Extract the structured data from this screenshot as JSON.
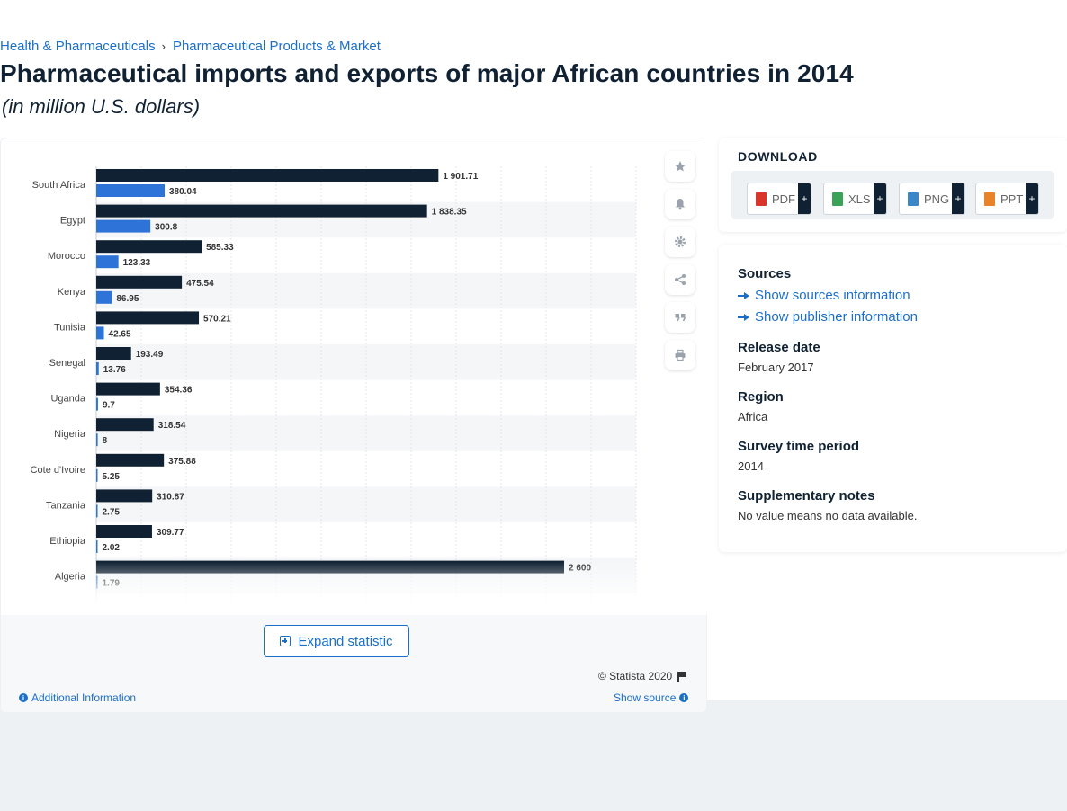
{
  "breadcrumb": {
    "items": [
      "Health & Pharmaceuticals",
      "Pharmaceutical Products & Market"
    ],
    "separator": "›"
  },
  "page": {
    "title": "Pharmaceutical imports and exports of major African countries in 2014",
    "subtitle": "(in million U.S. dollars)"
  },
  "chart_data": {
    "type": "bar",
    "orientation": "horizontal",
    "categories": [
      "South Africa",
      "Egypt",
      "Morocco",
      "Kenya",
      "Tunisia",
      "Senegal",
      "Uganda",
      "Nigeria",
      "Cote d'Ivoire",
      "Tanzania",
      "Ethiopia",
      "Algeria"
    ],
    "series": [
      {
        "color": "#0f2132",
        "values": [
          1901.71,
          1838.35,
          585.33,
          475.54,
          570.21,
          193.49,
          354.36,
          318.54,
          375.88,
          310.87,
          309.77,
          2600
        ],
        "labels": [
          "1 901.71",
          "1 838.35",
          "585.33",
          "475.54",
          "570.21",
          "193.49",
          "354.36",
          "318.54",
          "375.88",
          "310.87",
          "309.77",
          "2 600"
        ]
      },
      {
        "color": "#2e74d8",
        "values": [
          380.04,
          300.8,
          123.33,
          86.95,
          42.65,
          13.76,
          9.7,
          8,
          5.25,
          2.75,
          2.02,
          1.79
        ],
        "labels": [
          "380.04",
          "300.8",
          "123.33",
          "86.95",
          "42.65",
          "13.76",
          "9.7",
          "8",
          "5.25",
          "2.75",
          "2.02",
          "1.79"
        ]
      }
    ],
    "xlim": [
      0,
      3000
    ],
    "grid": true,
    "legend": "none"
  },
  "chart_tools": {
    "icons": [
      "star-icon",
      "bell-icon",
      "gear-icon",
      "share-icon",
      "quote-icon",
      "print-icon"
    ]
  },
  "chart_footer": {
    "expand_label": "Expand statistic",
    "copyright": "© Statista 2020",
    "additional_info": "Additional Information",
    "show_source": "Show source"
  },
  "download": {
    "title": "DOWNLOAD",
    "buttons": [
      {
        "label": "PDF",
        "plus": "+",
        "color": "#d9362b"
      },
      {
        "label": "XLS",
        "plus": "+",
        "color": "#3aa357"
      },
      {
        "label": "PNG",
        "plus": "+",
        "color": "#3b86c9"
      },
      {
        "label": "PPT",
        "plus": "+",
        "color": "#e8832a"
      }
    ]
  },
  "meta": {
    "sources_heading": "Sources",
    "show_sources": "Show sources information",
    "show_publisher": "Show publisher information",
    "release_heading": "Release date",
    "release_value": "February 2017",
    "region_heading": "Region",
    "region_value": "Africa",
    "survey_heading": "Survey time period",
    "survey_value": "2014",
    "notes_heading": "Supplementary notes",
    "notes_value": "No value means no data available."
  }
}
